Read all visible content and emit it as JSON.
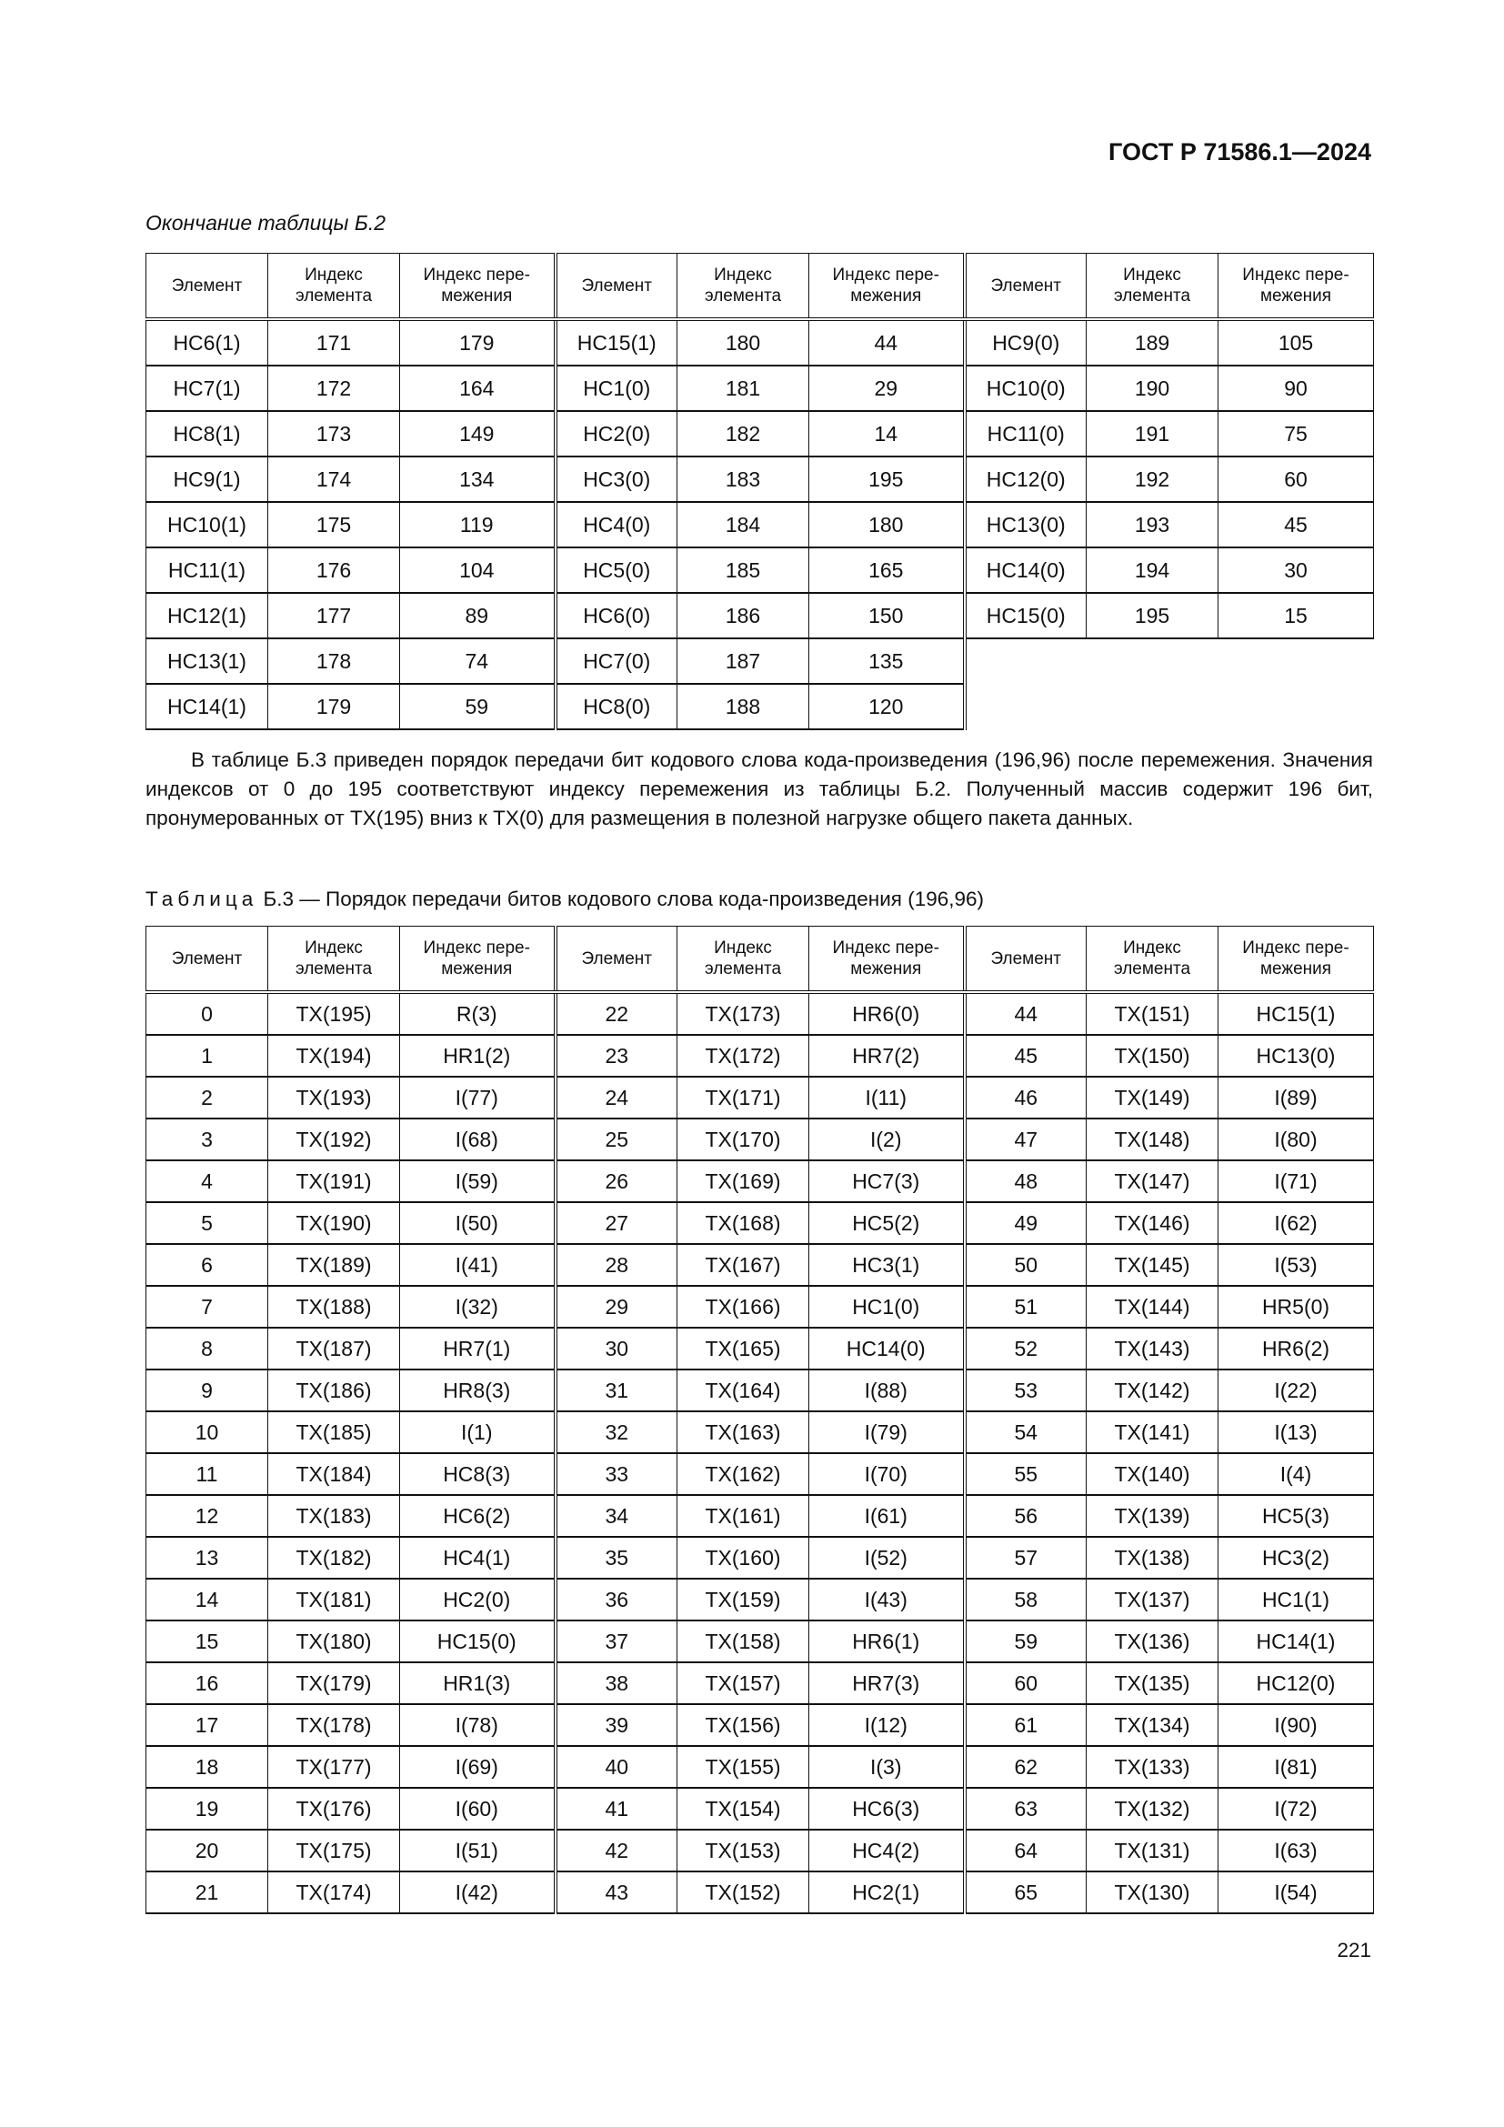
{
  "header": {
    "doc_code": "ГОСТ Р 71586.1—2024"
  },
  "table_b2": {
    "continuation_label": "Окончание таблицы Б.2",
    "columns": [
      "Элемент",
      "Индекс элемента",
      "Индекс пере-межения"
    ],
    "rows": [
      [
        "HC6(1)",
        "171",
        "179",
        "HC15(1)",
        "180",
        "44",
        "HC9(0)",
        "189",
        "105"
      ],
      [
        "HC7(1)",
        "172",
        "164",
        "HC1(0)",
        "181",
        "29",
        "HC10(0)",
        "190",
        "90"
      ],
      [
        "HC8(1)",
        "173",
        "149",
        "HC2(0)",
        "182",
        "14",
        "HC11(0)",
        "191",
        "75"
      ],
      [
        "HC9(1)",
        "174",
        "134",
        "HC3(0)",
        "183",
        "195",
        "HC12(0)",
        "192",
        "60"
      ],
      [
        "HC10(1)",
        "175",
        "119",
        "HC4(0)",
        "184",
        "180",
        "HC13(0)",
        "193",
        "45"
      ],
      [
        "HC11(1)",
        "176",
        "104",
        "HC5(0)",
        "185",
        "165",
        "HC14(0)",
        "194",
        "30"
      ],
      [
        "HC12(1)",
        "177",
        "89",
        "HC6(0)",
        "186",
        "150",
        "HC15(0)",
        "195",
        "15"
      ],
      [
        "HC13(1)",
        "178",
        "74",
        "HC7(0)",
        "187",
        "135"
      ],
      [
        "HC14(1)",
        "179",
        "59",
        "HC8(0)",
        "188",
        "120"
      ]
    ]
  },
  "paragraph": "В таблице Б.3 приведен порядок передачи бит кодового слова кода-произведения (196,96) после перемежения. Значения индексов от 0 до 195 соответствуют индексу перемежения из таблицы Б.2. Полученный массив содержит 196 бит, пронумерованных от TX(195) вниз к TX(0) для размещения в полезной нагрузке общего пакета данных.",
  "table_b3": {
    "caption_prefix": "Таблица",
    "caption_text": "Б.3 — Порядок передачи битов кодового слова кода-произведения (196,96)",
    "columns": [
      "Элемент",
      "Индекс элемента",
      "Индекс пере-межения"
    ],
    "rows": [
      [
        "0",
        "TX(195)",
        "R(3)",
        "22",
        "TX(173)",
        "HR6(0)",
        "44",
        "TX(151)",
        "HC15(1)"
      ],
      [
        "1",
        "TX(194)",
        "HR1(2)",
        "23",
        "TX(172)",
        "HR7(2)",
        "45",
        "TX(150)",
        "HC13(0)"
      ],
      [
        "2",
        "TX(193)",
        "I(77)",
        "24",
        "TX(171)",
        "I(11)",
        "46",
        "TX(149)",
        "I(89)"
      ],
      [
        "3",
        "TX(192)",
        "I(68)",
        "25",
        "TX(170)",
        "I(2)",
        "47",
        "TX(148)",
        "I(80)"
      ],
      [
        "4",
        "TX(191)",
        "I(59)",
        "26",
        "TX(169)",
        "HC7(3)",
        "48",
        "TX(147)",
        "I(71)"
      ],
      [
        "5",
        "TX(190)",
        "I(50)",
        "27",
        "TX(168)",
        "HC5(2)",
        "49",
        "TX(146)",
        "I(62)"
      ],
      [
        "6",
        "TX(189)",
        "I(41)",
        "28",
        "TX(167)",
        "HC3(1)",
        "50",
        "TX(145)",
        "I(53)"
      ],
      [
        "7",
        "TX(188)",
        "I(32)",
        "29",
        "TX(166)",
        "HC1(0)",
        "51",
        "TX(144)",
        "HR5(0)"
      ],
      [
        "8",
        "TX(187)",
        "HR7(1)",
        "30",
        "TX(165)",
        "HC14(0)",
        "52",
        "TX(143)",
        "HR6(2)"
      ],
      [
        "9",
        "TX(186)",
        "HR8(3)",
        "31",
        "TX(164)",
        "I(88)",
        "53",
        "TX(142)",
        "I(22)"
      ],
      [
        "10",
        "TX(185)",
        "I(1)",
        "32",
        "TX(163)",
        "I(79)",
        "54",
        "TX(141)",
        "I(13)"
      ],
      [
        "11",
        "TX(184)",
        "HC8(3)",
        "33",
        "TX(162)",
        "I(70)",
        "55",
        "TX(140)",
        "I(4)"
      ],
      [
        "12",
        "TX(183)",
        "HC6(2)",
        "34",
        "TX(161)",
        "I(61)",
        "56",
        "TX(139)",
        "HC5(3)"
      ],
      [
        "13",
        "TX(182)",
        "HC4(1)",
        "35",
        "TX(160)",
        "I(52)",
        "57",
        "TX(138)",
        "HC3(2)"
      ],
      [
        "14",
        "TX(181)",
        "HC2(0)",
        "36",
        "TX(159)",
        "I(43)",
        "58",
        "TX(137)",
        "HC1(1)"
      ],
      [
        "15",
        "TX(180)",
        "HC15(0)",
        "37",
        "TX(158)",
        "HR6(1)",
        "59",
        "TX(136)",
        "HC14(1)"
      ],
      [
        "16",
        "TX(179)",
        "HR1(3)",
        "38",
        "TX(157)",
        "HR7(3)",
        "60",
        "TX(135)",
        "HC12(0)"
      ],
      [
        "17",
        "TX(178)",
        "I(78)",
        "39",
        "TX(156)",
        "I(12)",
        "61",
        "TX(134)",
        "I(90)"
      ],
      [
        "18",
        "TX(177)",
        "I(69)",
        "40",
        "TX(155)",
        "I(3)",
        "62",
        "TX(133)",
        "I(81)"
      ],
      [
        "19",
        "TX(176)",
        "I(60)",
        "41",
        "TX(154)",
        "HC6(3)",
        "63",
        "TX(132)",
        "I(72)"
      ],
      [
        "20",
        "TX(175)",
        "I(51)",
        "42",
        "TX(153)",
        "HC4(2)",
        "64",
        "TX(131)",
        "I(63)"
      ],
      [
        "21",
        "TX(174)",
        "I(42)",
        "43",
        "TX(152)",
        "HC2(1)",
        "65",
        "TX(130)",
        "I(54)"
      ]
    ]
  },
  "footer": {
    "page_number": "221"
  }
}
